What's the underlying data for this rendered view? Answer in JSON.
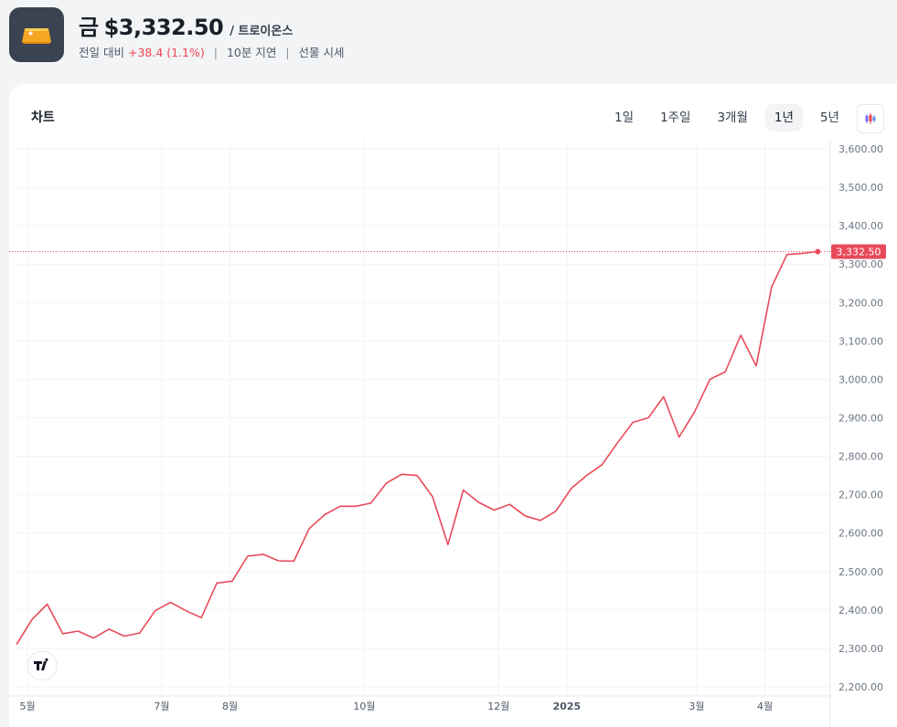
{
  "header": {
    "name": "금",
    "price": "$3,332.50",
    "unit": "/ 트로이온스",
    "change_label": "전일 대비",
    "change_value": "+38.4 (1.1%)",
    "delay": "10분 지연",
    "market": "선물 시세",
    "logo_icon": "gold-bar-icon"
  },
  "chart_card": {
    "title": "차트",
    "periods": [
      "1일",
      "1주일",
      "3개월",
      "1년",
      "5년"
    ],
    "active_period": "1년",
    "chart_type_icon": "candlestick-icon",
    "watermark_icon": "tradingview-logo-icon",
    "current_price_label": "3,332.50"
  },
  "chart_data": {
    "type": "line",
    "title": "",
    "xlabel": "",
    "ylabel": "",
    "ylim": [
      2200,
      3600
    ],
    "y_ticks": [
      3600,
      3500,
      3400,
      3300,
      3200,
      3100,
      3000,
      2900,
      2800,
      2700,
      2600,
      2500,
      2400,
      2300,
      2200
    ],
    "y_tick_labels": [
      "3,600.00",
      "3,500.00",
      "3,400.00",
      "3,300.00",
      "3,200.00",
      "3,100.00",
      "3,000.00",
      "2,900.00",
      "2,800.00",
      "2,700.00",
      "2,600.00",
      "2,500.00",
      "2,400.00",
      "2,300.00",
      "2,200.00"
    ],
    "x_tick_labels": [
      "5월",
      "7월",
      "8월",
      "10월",
      "12월",
      "2025",
      "3월",
      "4월"
    ],
    "x_tick_dates": [
      "2024-05-01",
      "2024-07-01",
      "2024-08-01",
      "2024-10-01",
      "2024-12-01",
      "2025-01-01",
      "2025-03-01",
      "2025-04-01"
    ],
    "x_range": [
      "2024-04-26",
      "2025-04-29"
    ],
    "last_value": 3332.5,
    "line_color": "#e84a5a",
    "grid": true,
    "series": [
      {
        "dates": [
          "2024-04-26",
          "2024-05-03",
          "2024-05-10",
          "2024-05-17",
          "2024-05-24",
          "2024-05-31",
          "2024-06-07",
          "2024-06-14",
          "2024-06-21",
          "2024-06-28",
          "2024-07-05",
          "2024-07-12",
          "2024-07-19",
          "2024-07-26",
          "2024-08-02",
          "2024-08-09",
          "2024-08-16",
          "2024-08-23",
          "2024-08-30",
          "2024-09-06",
          "2024-09-13",
          "2024-09-20",
          "2024-09-27",
          "2024-10-04",
          "2024-10-11",
          "2024-10-18",
          "2024-10-25",
          "2024-11-01",
          "2024-11-08",
          "2024-11-15",
          "2024-11-22",
          "2024-11-29",
          "2024-12-06",
          "2024-12-13",
          "2024-12-20",
          "2024-12-27",
          "2025-01-03",
          "2025-01-10",
          "2025-01-17",
          "2025-01-24",
          "2025-01-31",
          "2025-02-07",
          "2025-02-14",
          "2025-02-21",
          "2025-02-28",
          "2025-03-07",
          "2025-03-14",
          "2025-03-21",
          "2025-03-28",
          "2025-04-04",
          "2025-04-11",
          "2025-04-18",
          "2025-04-25"
        ],
        "values": [
          2310,
          2375,
          2415,
          2338,
          2345,
          2327,
          2350,
          2332,
          2340,
          2398,
          2420,
          2398,
          2380,
          2470,
          2475,
          2540,
          2545,
          2528,
          2527,
          2612,
          2648,
          2670,
          2670,
          2678,
          2730,
          2753,
          2750,
          2695,
          2570,
          2712,
          2680,
          2660,
          2675,
          2645,
          2633,
          2657,
          2716,
          2750,
          2778,
          2835,
          2888,
          2900,
          2955,
          2850,
          2915,
          3000,
          3020,
          3115,
          3035,
          3240,
          3325,
          3328,
          3332.5
        ]
      }
    ]
  }
}
